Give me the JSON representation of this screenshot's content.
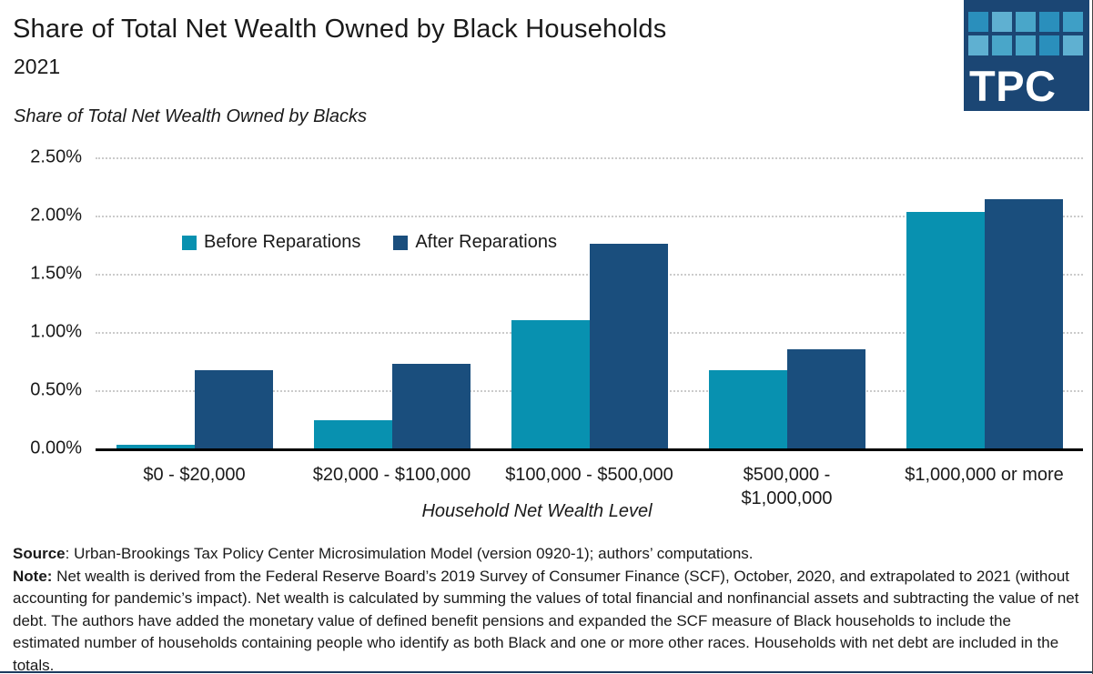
{
  "header": {
    "title": "Share of Total Net Wealth Owned by Black Households",
    "subtitle": "2021",
    "logo": {
      "text": "TPC",
      "bg_color": "#1B4674",
      "square_colors": [
        "#2A8FBC",
        "#5FB0D1",
        "#49A6C9",
        "#2A8FBC",
        "#3E9FC6",
        "#5FB0D1",
        "#49A6C9",
        "#49A6C9",
        "#2A8FBC",
        "#5FB0D1"
      ]
    }
  },
  "chart_data": {
    "type": "bar",
    "title": "Share of Total Net Wealth Owned by Black Households",
    "subtitle": "2021",
    "ylabel": "Share of Total Net Wealth Owned by Blacks",
    "xlabel": "Household Net Wealth Level",
    "categories": [
      "$0 - $20,000",
      "$20,000 - $100,000",
      "$100,000 - $500,000",
      "$500,000 -\n$1,000,000",
      "$1,000,000 or more"
    ],
    "series": [
      {
        "name": "Before Reparations",
        "color": "#0891B0",
        "values": [
          0.03,
          0.24,
          1.1,
          0.67,
          2.03
        ]
      },
      {
        "name": "After Reparations",
        "color": "#1A4E7D",
        "values": [
          0.67,
          0.73,
          1.76,
          0.85,
          2.14
        ]
      }
    ],
    "ylim": [
      0,
      2.5
    ],
    "yticks": [
      0,
      0.5,
      1.0,
      1.5,
      2.0,
      2.5
    ],
    "ytick_labels": [
      "0.00%",
      "0.50%",
      "1.00%",
      "1.50%",
      "2.00%",
      "2.50%"
    ],
    "grid": "horizontal-dotted",
    "legend_position": "inside-top-left"
  },
  "footer": {
    "source_label": "Source",
    "source_text": ": Urban-Brookings Tax Policy Center Microsimulation Model (version 0920-1); authors’ computations.",
    "note_label": "Note:",
    "note_text": " Net wealth is derived from the Federal Reserve Board’s 2019 Survey of Consumer Finance (SCF), October, 2020, and extrapolated to 2021 (without accounting for pandemic’s impact). Net wealth is calculated by summing the values of total financial and nonfinancial assets and subtracting the value of net debt. The authors have added the monetary value of defined benefit pensions and expanded the SCF measure of Black households to include the estimated number of households containing people who identify as both Black and one or more other races. Households with net debt are included in the totals."
  }
}
